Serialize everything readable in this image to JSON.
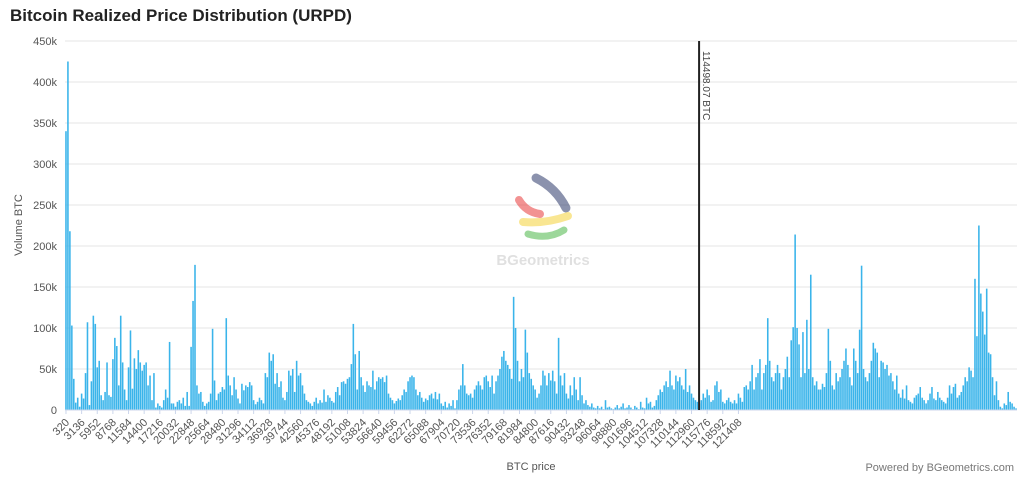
{
  "chart_data": {
    "type": "bar",
    "title": "Bitcoin Realized Price Distribution (URPD)",
    "xlabel": "BTC price",
    "ylabel": "Volume BTC",
    "ylim": [
      0,
      450000
    ],
    "y_ticks": [
      "0",
      "50k",
      "100k",
      "150k",
      "200k",
      "250k",
      "300k",
      "350k",
      "400k",
      "450k"
    ],
    "x_tick_labels": [
      "320",
      "3136",
      "5952",
      "8768",
      "11584",
      "14400",
      "17216",
      "20032",
      "22848",
      "25664",
      "28480",
      "31296",
      "34112",
      "36928",
      "39744",
      "42560",
      "45376",
      "48192",
      "51008",
      "53824",
      "56640",
      "59456",
      "62272",
      "65088",
      "67904",
      "70720",
      "73536",
      "76352",
      "79168",
      "81984",
      "84800",
      "87616",
      "90432",
      "93248",
      "96064",
      "98880",
      "101696",
      "104512",
      "107328",
      "110144",
      "112960",
      "115776",
      "118592",
      "121408"
    ],
    "bin_start": 320,
    "bin_width": 352,
    "grid": true,
    "color": "#3ab4ea",
    "values": [
      340000,
      425000,
      218000,
      103000,
      38000,
      9000,
      15000,
      4000,
      20000,
      14000,
      45000,
      107000,
      6000,
      35000,
      115000,
      105000,
      52000,
      60000,
      18000,
      12000,
      22000,
      58000,
      18000,
      16000,
      62000,
      88000,
      78000,
      30000,
      115000,
      58000,
      25000,
      12000,
      52000,
      97000,
      26000,
      63000,
      50000,
      73000,
      58000,
      48000,
      55000,
      58000,
      30000,
      42000,
      12000,
      45000,
      3000,
      8000,
      5000,
      3000,
      12000,
      25000,
      15000,
      83000,
      8000,
      8000,
      4000,
      10000,
      12000,
      8000,
      15000,
      5000,
      22000,
      5000,
      77000,
      133000,
      177000,
      30000,
      20000,
      22000,
      10000,
      5000,
      8000,
      10000,
      20000,
      99000,
      36000,
      12000,
      20000,
      22000,
      28000,
      25000,
      112000,
      42000,
      30000,
      18000,
      40000,
      25000,
      14000,
      8000,
      32000,
      24000,
      30000,
      28000,
      34000,
      30000,
      12000,
      7000,
      10000,
      15000,
      12000,
      8000,
      45000,
      40000,
      70000,
      60000,
      68000,
      32000,
      45000,
      28000,
      35000,
      15000,
      12000,
      22000,
      48000,
      42000,
      50000,
      22000,
      60000,
      42000,
      45000,
      30000,
      20000,
      12000,
      10000,
      8000,
      5000,
      10000,
      15000,
      8000,
      12000,
      9000,
      25000,
      10000,
      18000,
      15000,
      11000,
      9000,
      22000,
      28000,
      18000,
      34000,
      35000,
      32000,
      38000,
      40000,
      56000,
      105000,
      68000,
      25000,
      72000,
      40000,
      30000,
      22000,
      35000,
      30000,
      28000,
      48000,
      25000,
      35000,
      40000,
      38000,
      40000,
      34000,
      42000,
      20000,
      15000,
      12000,
      8000,
      11000,
      14000,
      12000,
      18000,
      25000,
      22000,
      35000,
      40000,
      42000,
      40000,
      25000,
      18000,
      22000,
      15000,
      10000,
      14000,
      12000,
      18000,
      20000,
      14000,
      22000,
      13000,
      20000,
      8000,
      5000,
      10000,
      3000,
      8000,
      5000,
      12000,
      2000,
      12000,
      25000,
      30000,
      56000,
      30000,
      20000,
      18000,
      20000,
      15000,
      25000,
      30000,
      35000,
      30000,
      25000,
      40000,
      42000,
      35000,
      28000,
      42000,
      20000,
      35000,
      42000,
      50000,
      65000,
      72000,
      60000,
      55000,
      50000,
      38000,
      138000,
      100000,
      60000,
      35000,
      50000,
      40000,
      98000,
      70000,
      45000,
      38000,
      30000,
      25000,
      15000,
      20000,
      30000,
      48000,
      42000,
      30000,
      45000,
      36000,
      48000,
      35000,
      20000,
      88000,
      42000,
      30000,
      45000,
      20000,
      14000,
      30000,
      18000,
      40000,
      25000,
      12000,
      40000,
      18000,
      8000,
      12000,
      6000,
      4000,
      8000,
      3000,
      2000,
      5000,
      2000,
      4000,
      1000,
      12000,
      3000,
      4000,
      2000,
      1000,
      3000,
      6000,
      2000,
      4000,
      8000,
      2000,
      3000,
      6000,
      3000,
      1000,
      5000,
      3000,
      1000,
      10000,
      3000,
      2000,
      15000,
      8000,
      10000,
      3000,
      5000,
      12000,
      18000,
      25000,
      22000,
      30000,
      35000,
      28000,
      48000,
      30000,
      25000,
      42000,
      35000,
      40000,
      30000,
      25000,
      50000,
      22000,
      30000,
      20000,
      15000,
      12000,
      10000,
      8000,
      12000,
      20000,
      15000,
      25000,
      18000,
      10000,
      12000,
      30000,
      35000,
      22000,
      25000,
      10000,
      8000,
      12000,
      15000,
      10000,
      8000,
      12000,
      8000,
      20000,
      15000,
      10000,
      28000,
      30000,
      25000,
      35000,
      55000,
      25000,
      40000,
      45000,
      62000,
      25000,
      45000,
      55000,
      112000,
      60000,
      40000,
      35000,
      45000,
      55000,
      45000,
      25000,
      40000,
      50000,
      65000,
      40000,
      85000,
      101000,
      214000,
      100000,
      80000,
      40000,
      95000,
      45000,
      110000,
      50000,
      165000,
      40000,
      30000,
      35000,
      25000,
      25000,
      32000,
      28000,
      45000,
      99000,
      60000,
      30000,
      25000,
      45000,
      35000,
      40000,
      50000,
      60000,
      75000,
      55000,
      40000,
      30000,
      75000,
      60000,
      45000,
      98000,
      176000,
      50000,
      40000,
      35000,
      45000,
      60000,
      82000,
      75000,
      70000,
      40000,
      60000,
      58000,
      50000,
      55000,
      42000,
      45000,
      35000,
      25000,
      42000,
      20000,
      15000,
      25000,
      14000,
      30000,
      12000,
      10000,
      8000,
      15000,
      18000,
      20000,
      28000,
      15000,
      12000,
      8000,
      12000,
      20000,
      28000,
      14000,
      12000,
      22000,
      15000,
      12000,
      10000,
      8000,
      15000,
      30000,
      20000,
      28000,
      32000,
      15000,
      18000,
      22000,
      30000,
      40000,
      35000,
      52000,
      48000,
      40000,
      160000,
      90000,
      225000,
      142000,
      120000,
      92000,
      148000,
      70000,
      68000,
      40000,
      18000,
      35000,
      12000,
      4000,
      2000,
      8000,
      6000,
      22000,
      10000,
      8000,
      4000,
      2000
    ],
    "marker": {
      "value": 114498.07,
      "label": "114498.07 BTC"
    }
  },
  "watermark": "BGeometrics",
  "credit": "Powered by BGeometrics.com"
}
